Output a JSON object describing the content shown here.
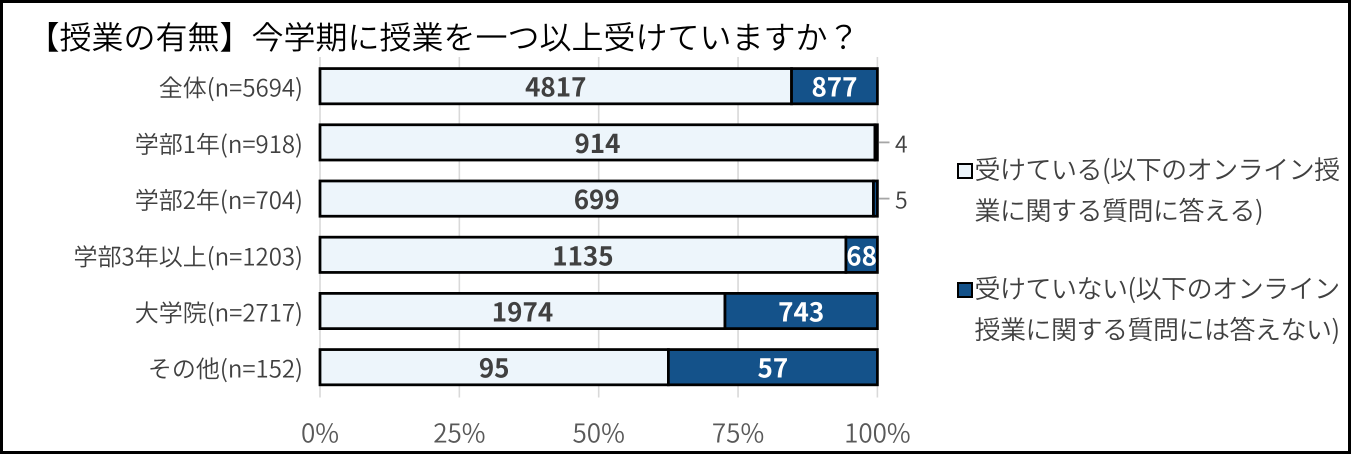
{
  "title": "【授業の有無】今学期に授業を一つ以上受けていますか？",
  "chart_data": {
    "type": "bar",
    "orientation": "horizontal",
    "stacked": true,
    "stacking": "percent",
    "title": "【授業の有無】今学期に授業を一つ以上受けていますか？",
    "categories": [
      "全体(n=5694)",
      "学部1年(n=918)",
      "学部2年(n=704)",
      "学部3年以上(n=1203)",
      "大学院(n=2717)",
      "その他(n=152)"
    ],
    "series": [
      {
        "name": "受けている(以下のオンライン授業に関する質問に答える)",
        "values": [
          4817,
          914,
          699,
          1135,
          1974,
          95
        ],
        "color": "#EDF5FB"
      },
      {
        "name": "受けていない(以下のオンライン授業に関する質問には答えない)",
        "values": [
          877,
          4,
          5,
          68,
          743,
          57
        ],
        "color": "#14528A"
      }
    ],
    "x_axis": {
      "ticks": [
        "0%",
        "25%",
        "50%",
        "75%",
        "100%"
      ],
      "range_percent": [
        0,
        100
      ]
    },
    "grid": true,
    "legend_position": "right",
    "bar_border_color": "#000000",
    "gridline_color": "#D9D9D9"
  },
  "legend": {
    "items": [
      {
        "lines": [
          "受けている(以下のオンライン授",
          "業に関する質問に答える)"
        ],
        "swatch_fill": "#EDF5FB"
      },
      {
        "lines": [
          "受けていない(以下のオンライン",
          "授業に関する質問には答えない)"
        ],
        "swatch_fill": "#14528A"
      }
    ]
  }
}
